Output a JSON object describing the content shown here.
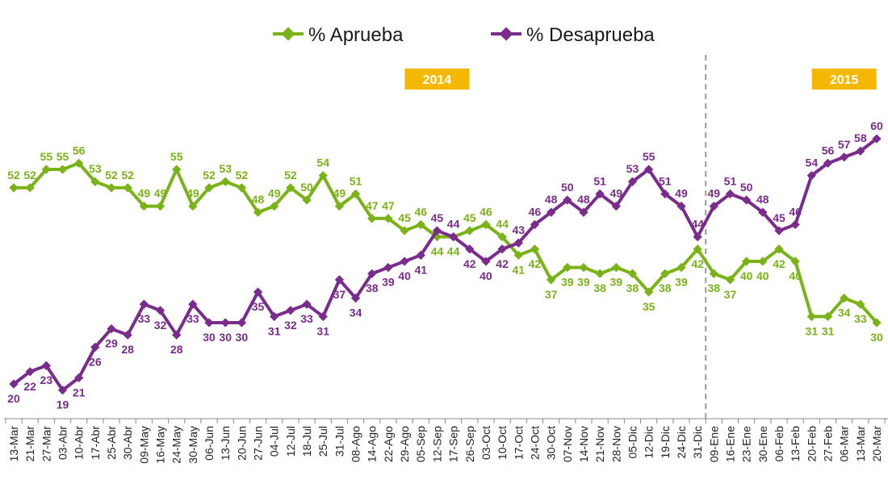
{
  "chart_data": {
    "type": "line",
    "title": "",
    "xlabel": "",
    "ylabel": "",
    "ylim": [
      15,
      62
    ],
    "grid": false,
    "legend_position": "top-center",
    "year_labels": [
      {
        "text": "2014",
        "at_category": "12-Sep"
      },
      {
        "text": "2015",
        "at_category": "06-Mar"
      }
    ],
    "year_divider_after": "31-Dic",
    "categories": [
      "13-Mar",
      "21-Mar",
      "27-Mar",
      "03-Abr",
      "10-Abr",
      "17-Abr",
      "25-Abr",
      "30-Abr",
      "09-May",
      "16-May",
      "24-May",
      "30-May",
      "06-Jun",
      "13-Jun",
      "20-Jun",
      "27-Jun",
      "04-Jul",
      "12-Jul",
      "18-Jul",
      "25-Jul",
      "31-Jul",
      "08-Ago",
      "14-Ago",
      "22-Ago",
      "29-Ago",
      "05-Sep",
      "12-Sep",
      "17-Sep",
      "26-Sep",
      "03-Oct",
      "10-Oct",
      "17-Oct",
      "24-Oct",
      "30-Oct",
      "07-Nov",
      "14-Nov",
      "21-Nov",
      "28-Nov",
      "05-Dic",
      "12-Dic",
      "19-Dic",
      "24-Dic",
      "31-Dic",
      "09-Ene",
      "16-Ene",
      "23-Ene",
      "30-Ene",
      "06-Feb",
      "13-Feb",
      "20-Feb",
      "27-Feb",
      "06-Mar",
      "13-Mar",
      "20-Mar"
    ],
    "series": [
      {
        "name": "% Aprueba",
        "color": "#7ab317",
        "values": [
          52,
          52,
          55,
          55,
          56,
          53,
          52,
          52,
          49,
          49,
          55,
          49,
          52,
          53,
          52,
          48,
          49,
          52,
          50,
          54,
          49,
          51,
          47,
          47,
          45,
          46,
          44,
          44,
          45,
          46,
          44,
          41,
          42,
          37,
          39,
          39,
          38,
          39,
          38,
          35,
          38,
          39,
          42,
          38,
          37,
          40,
          40,
          42,
          40,
          31,
          31,
          34,
          33,
          30
        ]
      },
      {
        "name": "% Desaprueba",
        "color": "#7a2c8c",
        "values": [
          20,
          22,
          23,
          19,
          21,
          26,
          29,
          28,
          33,
          32,
          28,
          33,
          30,
          30,
          30,
          35,
          31,
          32,
          33,
          31,
          37,
          34,
          38,
          39,
          40,
          41,
          45,
          44,
          42,
          40,
          42,
          43,
          46,
          48,
          50,
          48,
          51,
          49,
          53,
          55,
          51,
          49,
          44,
          49,
          51,
          50,
          48,
          45,
          46,
          54,
          56,
          57,
          58,
          60
        ]
      }
    ]
  }
}
